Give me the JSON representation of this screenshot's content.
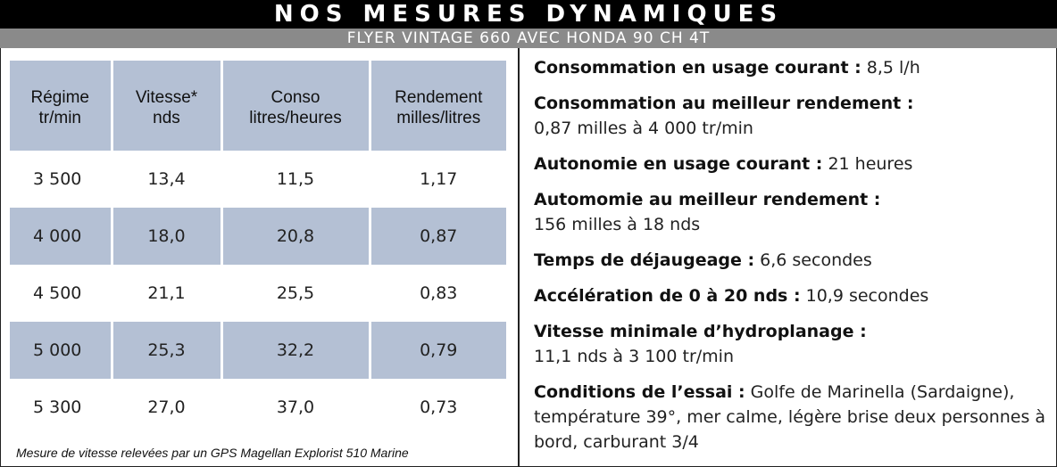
{
  "header": {
    "title": "NOS MESURES DYNAMIQUES",
    "subtitle": "FLYER VINTAGE 660 AVEC HONDA 90 CH 4T"
  },
  "table": {
    "headers": [
      {
        "line1": "Régime",
        "line2": "tr/min"
      },
      {
        "line1": "Vitesse*",
        "line2": "nds"
      },
      {
        "line1": "Conso",
        "line2": "litres/heures"
      },
      {
        "line1": "Rendement",
        "line2": "milles/litres"
      }
    ],
    "rows": [
      [
        "3 500",
        "13,4",
        "11,5",
        "1,17"
      ],
      [
        "4 000",
        "18,0",
        "20,8",
        "0,87"
      ],
      [
        "4 500",
        "21,1",
        "25,5",
        "0,83"
      ],
      [
        "5 000",
        "25,3",
        "32,2",
        "0,79"
      ],
      [
        "5 300",
        "27,0",
        "37,0",
        "0,73"
      ]
    ],
    "footnote": "Mesure de vitesse relevées par un GPS Magellan Explorist 510 Marine"
  },
  "info": [
    {
      "label": "Consommation en usage courant :",
      "value": " 8,5 l/h"
    },
    {
      "label": "Consommation au meilleur rendement :",
      "value": "0,87 milles à 4 000 tr/min"
    },
    {
      "label": "Autonomie en usage courant :",
      "value": " 21 heures"
    },
    {
      "label": "Automomie au meilleur rendement :",
      "value": "156 milles à 18 nds"
    },
    {
      "label": "Temps de déjaugeage :",
      "value": " 6,6 secondes"
    },
    {
      "label": "Accélération de 0 à 20 nds :",
      "value": " 10,9 secondes"
    },
    {
      "label": "Vitesse minimale d’hydroplanage :",
      "value": "11,1 nds à 3 100 tr/min"
    },
    {
      "label": "Conditions de l’essai :",
      "value": " Golfe de Marinella (Sardaigne), température 39°, mer calme, légère brise deux personnes à bord, carburant 3/4"
    }
  ],
  "colors": {
    "header_bg": "#000000",
    "subtitle_bg": "#8a8a8a",
    "row_shade": "#b4c0d4"
  }
}
